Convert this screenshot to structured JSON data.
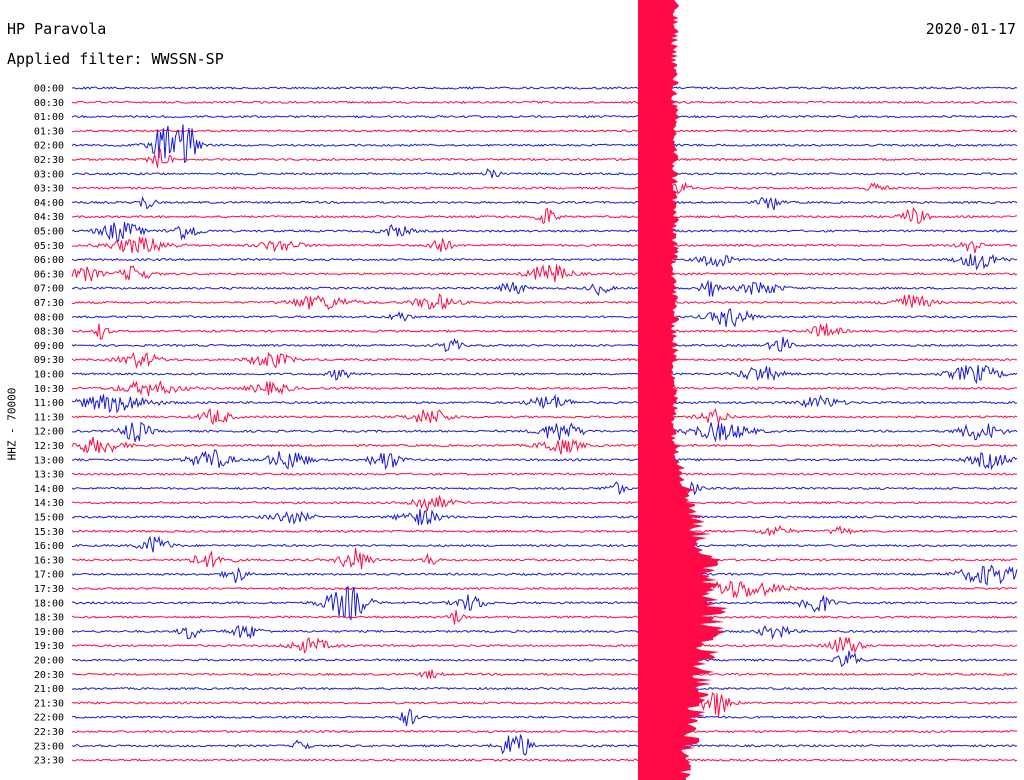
{
  "header": {
    "station": "HP Paravola",
    "filter": "Applied filter: WWSSN-SP",
    "date": "2020-01-17"
  },
  "channel_label": "HHZ - 70000",
  "colors": {
    "blue": "#1a1ad4",
    "red": "#ff0a46"
  },
  "time_labels": [
    "00:00",
    "00:30",
    "01:00",
    "01:30",
    "02:00",
    "02:30",
    "03:00",
    "03:30",
    "04:00",
    "04:30",
    "05:00",
    "05:30",
    "06:00",
    "06:30",
    "07:00",
    "07:30",
    "08:00",
    "08:30",
    "09:00",
    "09:30",
    "10:00",
    "10:30",
    "11:00",
    "11:30",
    "12:00",
    "12:30",
    "13:00",
    "13:30",
    "14:00",
    "14:30",
    "15:00",
    "15:30",
    "16:00",
    "16:30",
    "17:00",
    "17:30",
    "18:00",
    "18:30",
    "19:00",
    "19:30",
    "20:00",
    "20:30",
    "21:00",
    "21:30",
    "22:00",
    "22:30",
    "23:00",
    "23:30"
  ]
}
